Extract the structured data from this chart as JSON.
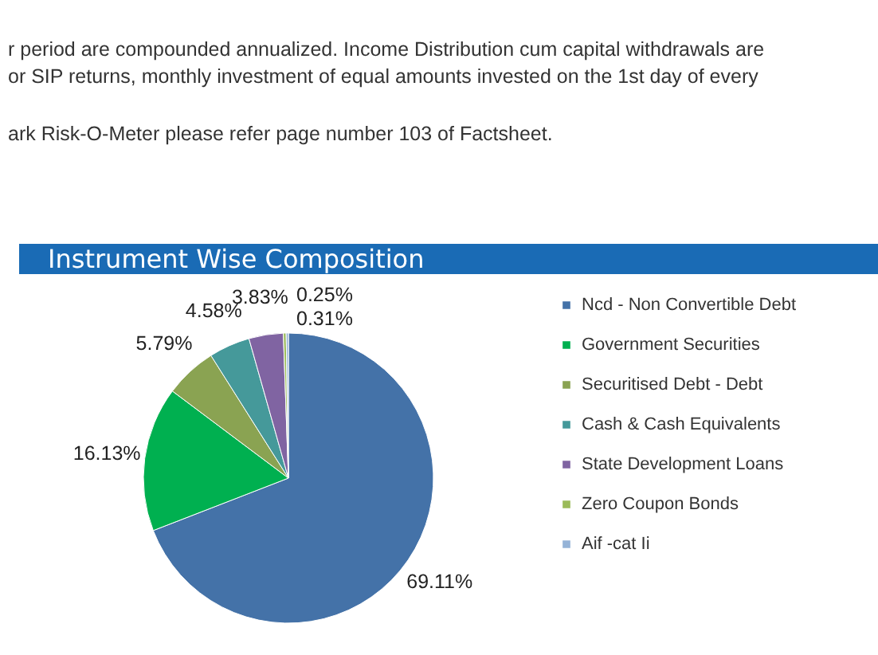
{
  "chart_data": {
    "type": "pie",
    "title": "Instrument Wise Composition",
    "annotations": [
      "r period are compounded annualized. Income Distribution cum capital withdrawals are",
      "or SIP returns, monthly investment of equal amounts invested on the 1st day of every",
      "ark Risk-O-Meter please refer page number 103 of Factsheet."
    ],
    "categories": [
      "Ncd - Non Convertible Debt",
      "Government Securities",
      "Securitised Debt - Debt",
      "Cash & Cash Equivalents",
      "State Development Loans",
      "Zero Coupon Bonds",
      "Aif -cat Ii"
    ],
    "values": [
      69.11,
      16.13,
      5.79,
      4.58,
      3.83,
      0.31,
      0.25
    ],
    "value_labels": [
      "69.11%",
      "16.13%",
      "5.79%",
      "4.58%",
      "3.83%",
      "0.31%",
      "0.25%"
    ],
    "colors": [
      "#4472a8",
      "#00b050",
      "#8aa352",
      "#45999a",
      "#8064a2",
      "#9bbb59",
      "#95b3d7"
    ],
    "legend": "right"
  }
}
